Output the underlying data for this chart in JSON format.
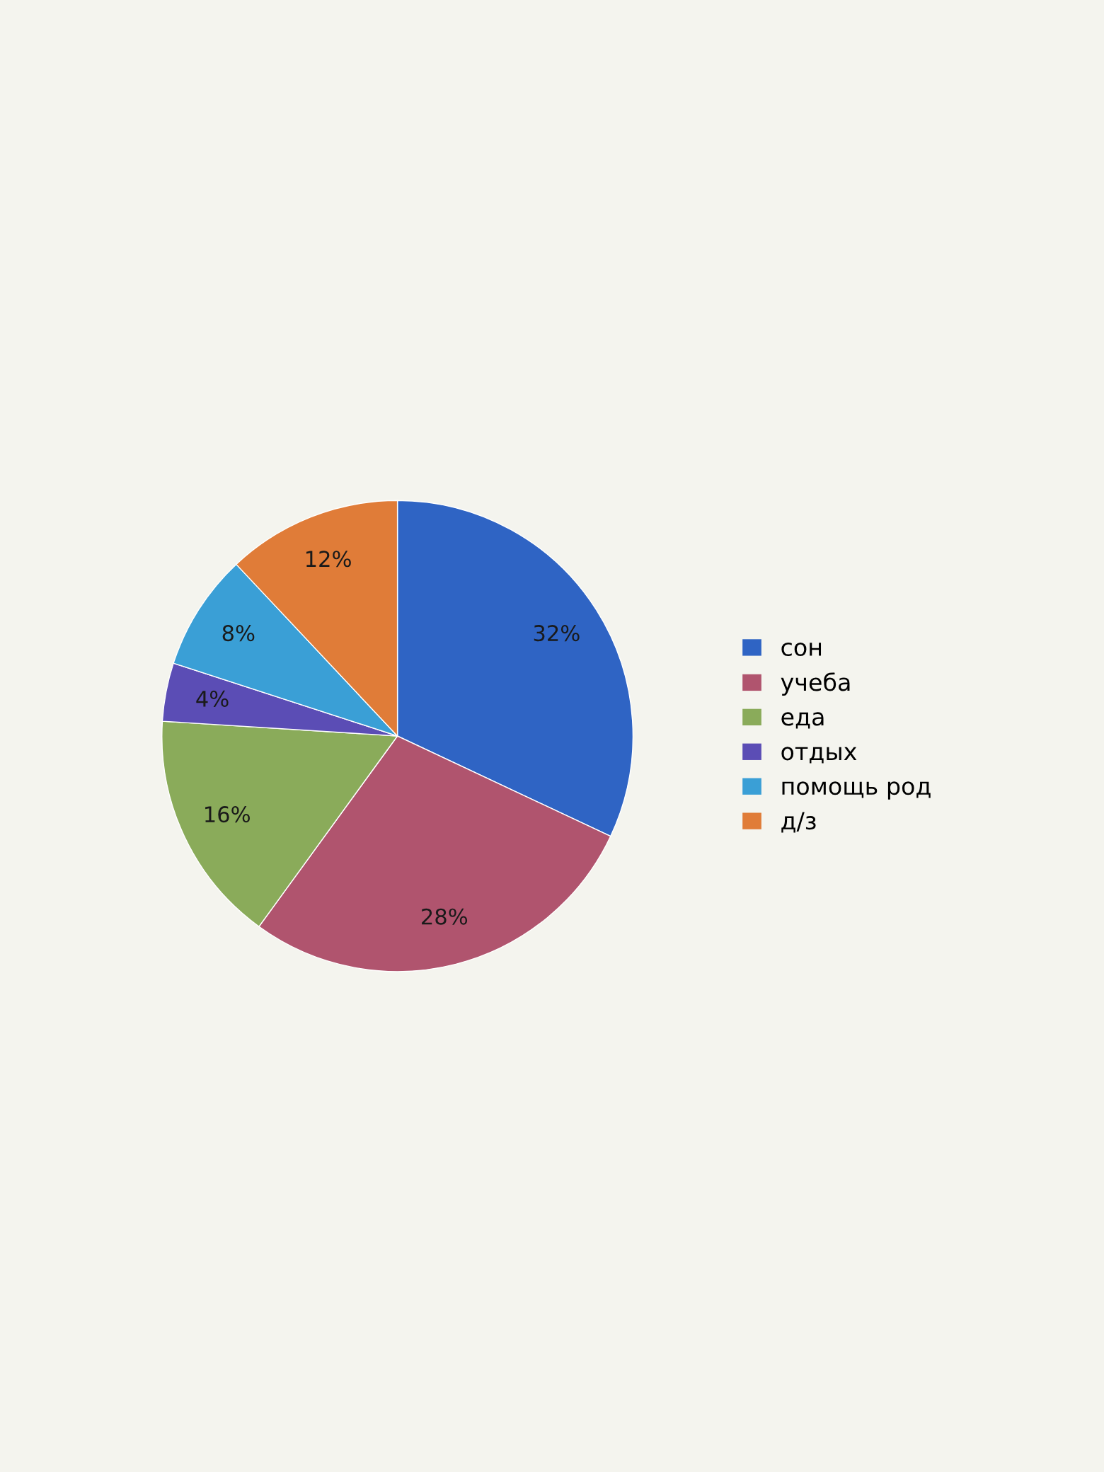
{
  "chart_data": {
    "type": "pie",
    "categories": [
      "сон",
      "учеба",
      "еда",
      "отдых",
      "помощь род",
      "д/з"
    ],
    "values": [
      32,
      28,
      16,
      4,
      8,
      12
    ],
    "colors": [
      "#2f64c4",
      "#b0546e",
      "#8aab5a",
      "#5b4db5",
      "#3a9fd6",
      "#e07c38"
    ],
    "value_labels": [
      "32%",
      "28%",
      "16%",
      "4%",
      "8%",
      "12%"
    ],
    "legend": "right"
  }
}
